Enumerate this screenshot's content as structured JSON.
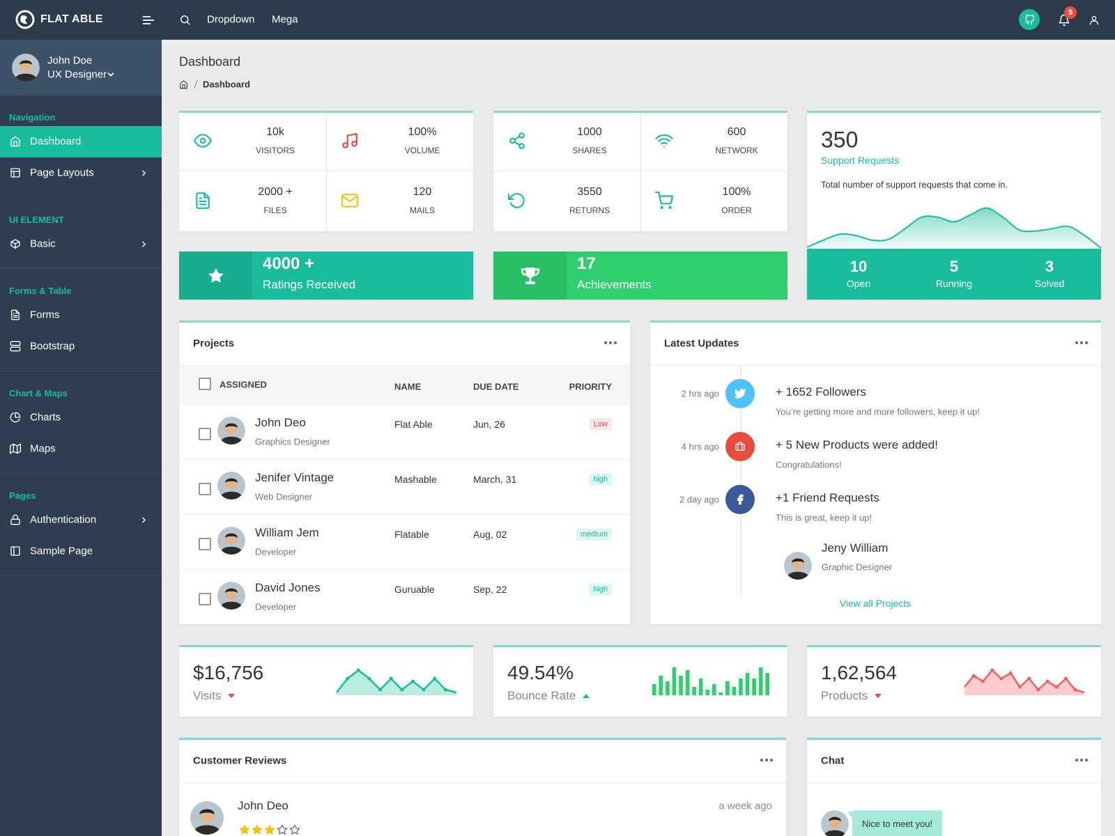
{
  "header": {
    "brand": "FLAT ABLE",
    "nav": [
      "Dropdown",
      "Mega"
    ],
    "notifications": 5
  },
  "sidebar": {
    "user": {
      "name": "John Doe",
      "role": "UX Designer"
    },
    "sections": [
      {
        "title": "Navigation",
        "items": [
          "Dashboard",
          "Page Layouts"
        ]
      },
      {
        "title": "UI ELEMENT",
        "items": [
          "Basic"
        ]
      },
      {
        "title": "Forms & Table",
        "items": [
          "Forms",
          "Bootstrap"
        ]
      },
      {
        "title": "Chart & Maps",
        "items": [
          "Charts",
          "Maps"
        ]
      },
      {
        "title": "Pages",
        "items": [
          "Authentication",
          "Sample Page"
        ]
      }
    ]
  },
  "page": {
    "title": "Dashboard",
    "breadcrumb": "Dashboard"
  },
  "stats": [
    {
      "value": "10k",
      "label": "VISITORS"
    },
    {
      "value": "100%",
      "label": "VOLUME"
    },
    {
      "value": "2000 +",
      "label": "FILES"
    },
    {
      "value": 120,
      "label": "MAILS"
    },
    {
      "value": 1000,
      "label": "SHARES"
    },
    {
      "value": 600,
      "label": "NETWORK"
    },
    {
      "value": 3550,
      "label": "RETURNS"
    },
    {
      "value": "100%",
      "label": "ORDER"
    }
  ],
  "highlights": [
    {
      "value": "4000 +",
      "label": "Ratings Received",
      "color": "#1abc9c"
    },
    {
      "value": 17,
      "label": "Achievements",
      "color": "#2ed06e"
    }
  ],
  "support": {
    "value": 350,
    "label": "Support Requests",
    "description": "Total number of support requests that come in.",
    "trend": {
      "values": [
        0.5,
        2,
        3.3,
        3,
        2,
        2.2,
        4.5,
        7,
        7,
        6,
        7.5,
        9,
        7,
        4.2,
        4,
        4.5,
        5,
        3,
        0.3
      ],
      "ylim": [
        0,
        10
      ],
      "color": "#1abc9c"
    },
    "stats": [
      {
        "value": 10,
        "label": "Open"
      },
      {
        "value": 5,
        "label": "Running"
      },
      {
        "value": 3,
        "label": "Solved"
      }
    ]
  },
  "projects": {
    "title": "Projects",
    "columns": [
      "ASSIGNED",
      "NAME",
      "DUE DATE",
      "PRIORITY"
    ],
    "rows": [
      {
        "name": "John Deo",
        "role": "Graphics Designer",
        "project": "Flat Able",
        "due": "Jun, 26",
        "priority": "Low",
        "color": "#e74c3c"
      },
      {
        "name": "Jenifer Vintage",
        "role": "Web Designer",
        "project": "Mashable",
        "due": "March, 31",
        "priority": "high",
        "color": "#1abc9c"
      },
      {
        "name": "William Jem",
        "role": "Developer",
        "project": "Flatable",
        "due": "Aug, 02",
        "priority": "medium",
        "color": "#1abc9c"
      },
      {
        "name": "David Jones",
        "role": "Developer",
        "project": "Guruable",
        "due": "Sep, 22",
        "priority": "high",
        "color": "#1abc9c"
      }
    ]
  },
  "updates": {
    "title": "Latest Updates",
    "items": [
      {
        "time": "2 hrs ago",
        "title": "+ 1652 Followers",
        "text": "You’re getting more and more followers, keep it up!",
        "color": "#4fc3f7"
      },
      {
        "time": "4 hrs ago",
        "title": "+ 5 New Products were added!",
        "text": "Congratulations!",
        "color": "#e74c3c"
      },
      {
        "time": "2 day ago",
        "title": "+1 Friend Requests",
        "text": "This is great, keep it up!",
        "color": "#3b5998"
      }
    ],
    "person": {
      "name": "Jeny William",
      "role": "Graphic Designer"
    },
    "link": "View all Projects"
  },
  "summary": [
    {
      "value": "$16,756",
      "label": "Visits",
      "type": "line",
      "color": "#1abc9c",
      "values": [
        1,
        6,
        9,
        6,
        2,
        6,
        2,
        5,
        2,
        6,
        2,
        1
      ],
      "ylim": [
        0,
        10
      ]
    },
    {
      "value": "49.54%",
      "label": "Bounce Rate",
      "type": "bar",
      "color": "#2ed06e",
      "values": [
        4,
        7,
        5,
        10,
        7,
        9,
        3,
        6,
        2,
        4,
        1,
        5,
        3,
        6,
        8,
        6,
        10,
        8
      ],
      "ylim": [
        0,
        10
      ]
    },
    {
      "value": "1,62,564",
      "label": "Products",
      "type": "line",
      "color": "#ff5b5b",
      "values": [
        3,
        7,
        5,
        9,
        6,
        8,
        3,
        6,
        2,
        5,
        3,
        6,
        2,
        1
      ],
      "ylim": [
        0,
        10
      ]
    }
  ],
  "reviews": {
    "title": "Customer Reviews",
    "items": [
      {
        "name": "John Deo",
        "time": "a week ago",
        "rating": 3,
        "max_rating": 5
      }
    ]
  },
  "chat": {
    "title": "Chat",
    "messages": [
      "Nice to meet you!"
    ]
  }
}
